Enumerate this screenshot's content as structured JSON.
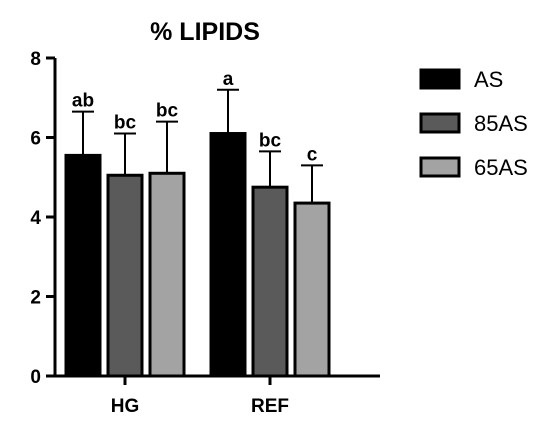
{
  "chart_data": {
    "type": "bar",
    "title": "% LIPIDS",
    "categories": [
      "HG",
      "REF"
    ],
    "series": [
      {
        "name": "AS",
        "color": "#000000",
        "values": [
          5.55,
          6.1
        ],
        "errors": [
          1.1,
          1.1
        ],
        "labels": [
          "ab",
          "a"
        ]
      },
      {
        "name": "85AS",
        "color": "#5a5a5a",
        "values": [
          5.05,
          4.75
        ],
        "errors": [
          1.05,
          0.9
        ],
        "labels": [
          "bc",
          "bc"
        ]
      },
      {
        "name": "65AS",
        "color": "#a3a3a3",
        "values": [
          5.1,
          4.35
        ],
        "errors": [
          1.3,
          0.95
        ],
        "labels": [
          "bc",
          "c"
        ]
      }
    ],
    "ylim": [
      0,
      8
    ],
    "yticks": [
      "0",
      "2",
      "4",
      "6",
      "8"
    ],
    "xlabel": "",
    "ylabel": "",
    "legend_position": "right",
    "grid": false
  }
}
